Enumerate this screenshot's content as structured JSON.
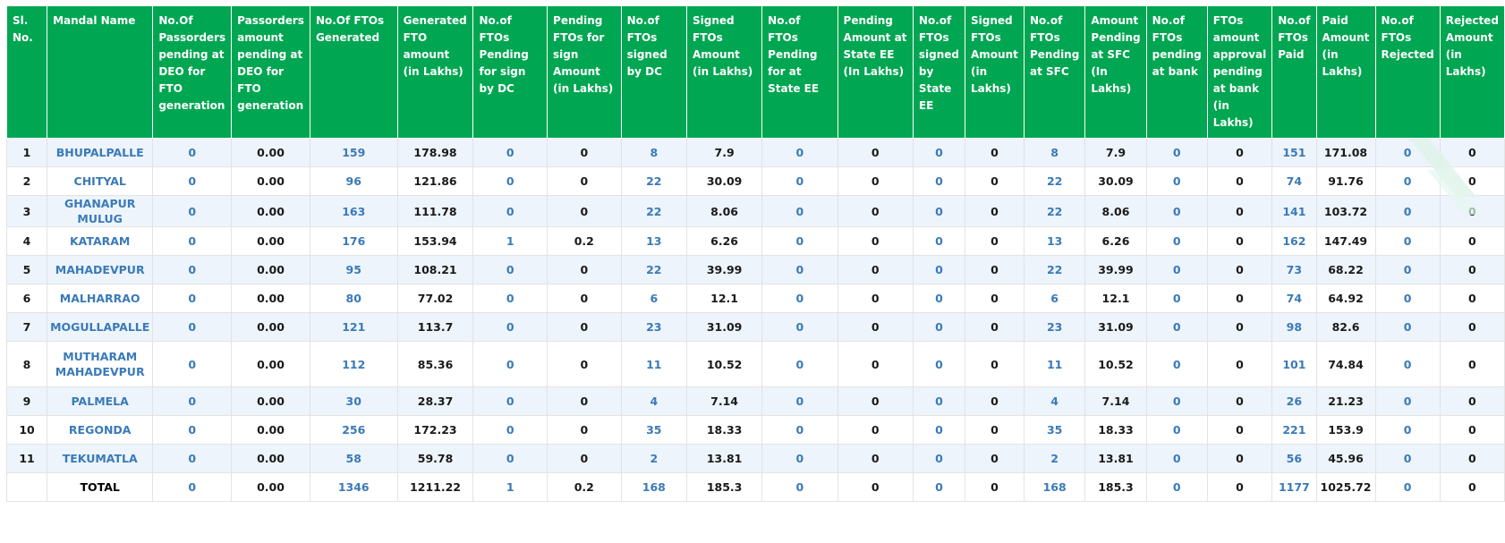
{
  "table": {
    "headers": [
      "Sl. No.",
      "Mandal Name",
      "No.Of Passorders pending at DEO for FTO generation",
      "Passorders amount pending at DEO for FTO generation",
      "No.Of FTOs Generated",
      "Generated FTO amount (in Lakhs)",
      "No.of FTOs Pending for sign by DC",
      "Pending FTOs for sign Amount (in Lakhs)",
      "No.of FTOs signed by DC",
      "Signed FTOs Amount (in Lakhs)",
      "No.of FTOs Pending for at State EE",
      "Pending Amount at State EE (In Lakhs)",
      "No.of FTOs signed by State EE",
      "Signed FTOs Amount (in Lakhs)",
      "No.of FTOs Pending at SFC",
      "Amount Pending at SFC (In Lakhs)",
      "No.of FTOs pending at bank",
      "FTOs amount approval pending at bank (in Lakhs)",
      "No.of FTOs Paid",
      "Paid Amount (in Lakhs)",
      "No.of FTOs Rejected",
      "Rejected Amount (in Lakhs)"
    ],
    "rows": [
      [
        "1",
        "BHUPALPALLE",
        "0",
        "0.00",
        "159",
        "178.98",
        "0",
        "0",
        "8",
        "7.9",
        "0",
        "0",
        "0",
        "0",
        "8",
        "7.9",
        "0",
        "0",
        "151",
        "171.08",
        "0",
        "0"
      ],
      [
        "2",
        "CHITYAL",
        "0",
        "0.00",
        "96",
        "121.86",
        "0",
        "0",
        "22",
        "30.09",
        "0",
        "0",
        "0",
        "0",
        "22",
        "30.09",
        "0",
        "0",
        "74",
        "91.76",
        "0",
        "0"
      ],
      [
        "3",
        "GHANAPUR MULUG",
        "0",
        "0.00",
        "163",
        "111.78",
        "0",
        "0",
        "22",
        "8.06",
        "0",
        "0",
        "0",
        "0",
        "22",
        "8.06",
        "0",
        "0",
        "141",
        "103.72",
        "0",
        "0"
      ],
      [
        "4",
        "KATARAM",
        "0",
        "0.00",
        "176",
        "153.94",
        "1",
        "0.2",
        "13",
        "6.26",
        "0",
        "0",
        "0",
        "0",
        "13",
        "6.26",
        "0",
        "0",
        "162",
        "147.49",
        "0",
        "0"
      ],
      [
        "5",
        "MAHADEVPUR",
        "0",
        "0.00",
        "95",
        "108.21",
        "0",
        "0",
        "22",
        "39.99",
        "0",
        "0",
        "0",
        "0",
        "22",
        "39.99",
        "0",
        "0",
        "73",
        "68.22",
        "0",
        "0"
      ],
      [
        "6",
        "MALHARRAO",
        "0",
        "0.00",
        "80",
        "77.02",
        "0",
        "0",
        "6",
        "12.1",
        "0",
        "0",
        "0",
        "0",
        "6",
        "12.1",
        "0",
        "0",
        "74",
        "64.92",
        "0",
        "0"
      ],
      [
        "7",
        "MOGULLAPALLE",
        "0",
        "0.00",
        "121",
        "113.7",
        "0",
        "0",
        "23",
        "31.09",
        "0",
        "0",
        "0",
        "0",
        "23",
        "31.09",
        "0",
        "0",
        "98",
        "82.6",
        "0",
        "0"
      ],
      [
        "8",
        "MUTHARAM MAHADEVPUR",
        "0",
        "0.00",
        "112",
        "85.36",
        "0",
        "0",
        "11",
        "10.52",
        "0",
        "0",
        "0",
        "0",
        "11",
        "10.52",
        "0",
        "0",
        "101",
        "74.84",
        "0",
        "0"
      ],
      [
        "9",
        "PALMELA",
        "0",
        "0.00",
        "30",
        "28.37",
        "0",
        "0",
        "4",
        "7.14",
        "0",
        "0",
        "0",
        "0",
        "4",
        "7.14",
        "0",
        "0",
        "26",
        "21.23",
        "0",
        "0"
      ],
      [
        "10",
        "REGONDA",
        "0",
        "0.00",
        "256",
        "172.23",
        "0",
        "0",
        "35",
        "18.33",
        "0",
        "0",
        "0",
        "0",
        "35",
        "18.33",
        "0",
        "0",
        "221",
        "153.9",
        "0",
        "0"
      ],
      [
        "11",
        "TEKUMATLA",
        "0",
        "0.00",
        "58",
        "59.78",
        "0",
        "0",
        "2",
        "13.81",
        "0",
        "0",
        "0",
        "0",
        "2",
        "13.81",
        "0",
        "0",
        "56",
        "45.96",
        "0",
        "0"
      ]
    ],
    "total": [
      "",
      "TOTAL",
      "0",
      "0.00",
      "1346",
      "1211.22",
      "1",
      "0.2",
      "168",
      "185.3",
      "0",
      "0",
      "0",
      "0",
      "168",
      "185.3",
      "0",
      "0",
      "1177",
      "1025.72",
      "0",
      "0"
    ]
  },
  "colors": {
    "header_bg": "#00a651",
    "header_text": "#ffffff",
    "link": "#3a7ab9",
    "row_alt": "#edf4fb"
  }
}
